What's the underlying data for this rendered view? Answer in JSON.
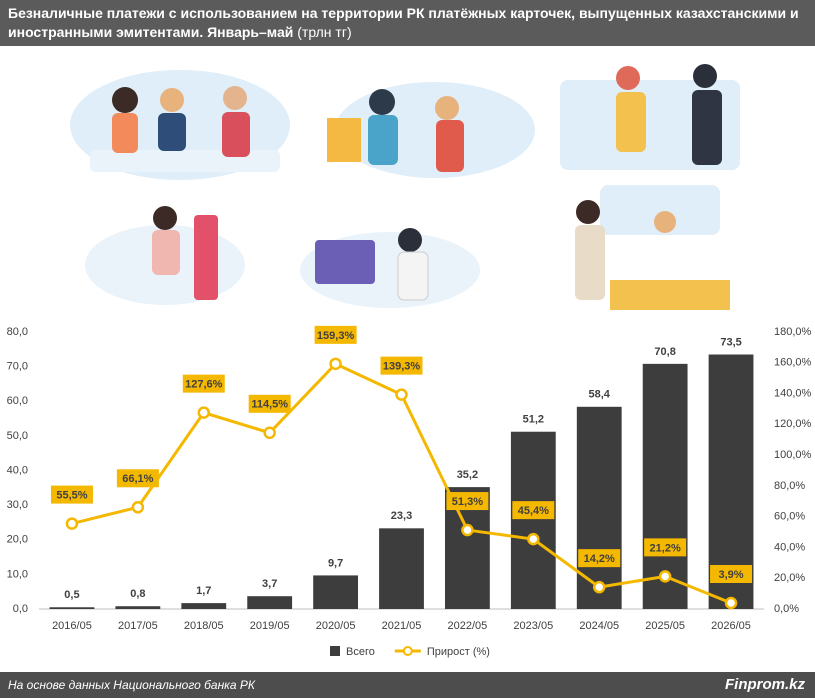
{
  "chart_data": {
    "type": "bar",
    "title": "Безналичные платежи с использованием на территории РК платёжных карточек, выпущенных казахстанскими и иностранными эмитентами. Январь–май",
    "unit": "(трлн тг)",
    "categories": [
      "2016/05",
      "2017/05",
      "2018/05",
      "2019/05",
      "2020/05",
      "2021/05",
      "2022/05",
      "2023/05",
      "2024/05",
      "2025/05",
      "2026/05"
    ],
    "series": [
      {
        "name": "Всего",
        "type": "bar",
        "color": "#3d3d3d",
        "values": [
          0.5,
          0.8,
          1.7,
          3.7,
          9.7,
          23.3,
          35.2,
          51.2,
          58.4,
          70.8,
          73.5
        ],
        "value_labels": [
          "0,5",
          "0,8",
          "1,7",
          "3,7",
          "9,7",
          "23,3",
          "35,2",
          "51,2",
          "58,4",
          "70,8",
          "73,5"
        ]
      },
      {
        "name": "Прирост (%)",
        "type": "line",
        "axis": "y2",
        "color": "#f5b800",
        "values": [
          55.5,
          66.1,
          127.6,
          114.5,
          159.3,
          139.3,
          51.3,
          45.4,
          14.2,
          21.2,
          3.9
        ],
        "value_labels": [
          "55,5%",
          "66,1%",
          "127,6%",
          "114,5%",
          "159,3%",
          "139,3%",
          "51,3%",
          "45,4%",
          "14,2%",
          "21,2%",
          "3,9%"
        ]
      }
    ],
    "ylim": [
      0,
      80
    ],
    "yticks": [
      {
        "value": 0,
        "label": "0,0"
      },
      {
        "value": 10,
        "label": "10,0"
      },
      {
        "value": 20,
        "label": "20,0"
      },
      {
        "value": 30,
        "label": "30,0"
      },
      {
        "value": 40,
        "label": "40,0"
      },
      {
        "value": 50,
        "label": "50,0"
      },
      {
        "value": 60,
        "label": "60,0"
      },
      {
        "value": 70,
        "label": "70,0"
      },
      {
        "value": 80,
        "label": "80,0"
      }
    ],
    "y2lim": [
      0,
      180
    ],
    "y2ticks": [
      {
        "value": 0,
        "label": "0,0%"
      },
      {
        "value": 20,
        "label": "20,0%"
      },
      {
        "value": 40,
        "label": "40,0%"
      },
      {
        "value": 60,
        "label": "60,0%"
      },
      {
        "value": 80,
        "label": "80,0%"
      },
      {
        "value": 100,
        "label": "100,0%"
      },
      {
        "value": 120,
        "label": "120,0%"
      },
      {
        "value": 140,
        "label": "140,0%"
      },
      {
        "value": 160,
        "label": "160,0%"
      },
      {
        "value": 180,
        "label": "180,0%"
      }
    ],
    "grid": false
  },
  "footer": {
    "source": "На основе данных Национального банка РК",
    "brand": "Finprom.kz"
  }
}
